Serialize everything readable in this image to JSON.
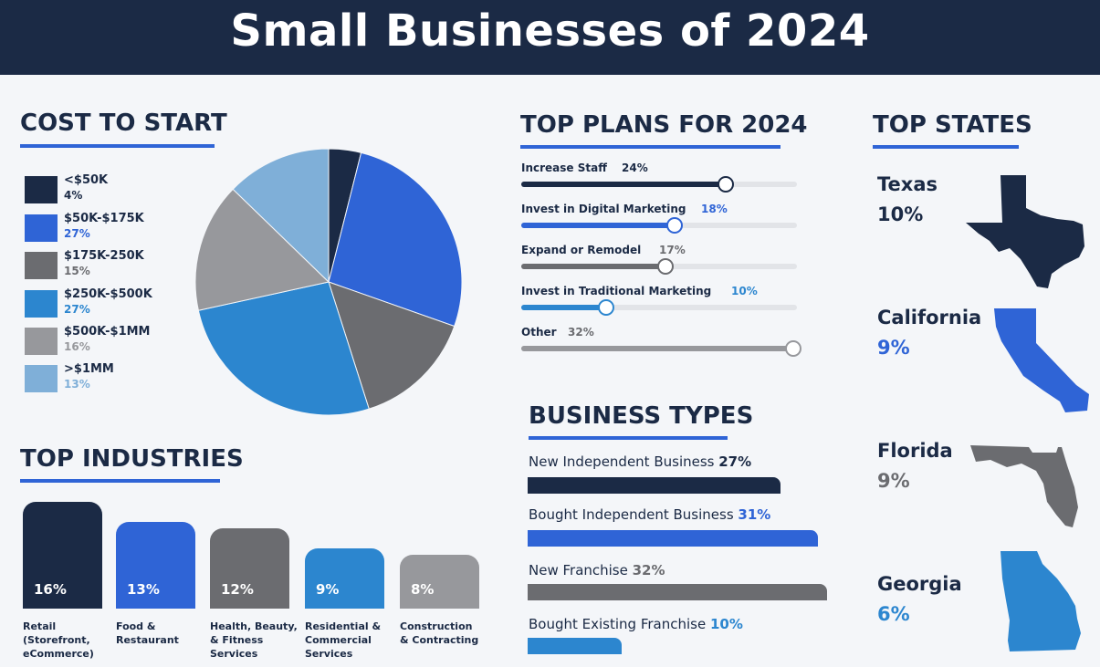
{
  "title": "Small Businesses of 2024",
  "colors": {
    "navy": "#1b2a45",
    "blue": "#2f64d6",
    "gray": "#6b6c70",
    "mid_blue": "#2c86cf",
    "light_gray": "#97989c",
    "light_blue": "#7fafd8"
  },
  "cost_to_start": {
    "heading": "COST TO START",
    "items": [
      {
        "label": "<$50K",
        "pct": "4%",
        "color": "#1b2a45"
      },
      {
        "label": "$50K-$175K",
        "pct": "27%",
        "color": "#2f64d6"
      },
      {
        "label": "$175K-250K",
        "pct": "15%",
        "color": "#6b6c70"
      },
      {
        "label": "$250K-$500K",
        "pct": "27%",
        "color": "#2c86cf"
      },
      {
        "label": "$500K-$1MM",
        "pct": "16%",
        "color": "#97989c"
      },
      {
        "label": ">$1MM",
        "pct": "13%",
        "color": "#7fafd8"
      }
    ]
  },
  "top_plans": {
    "heading": "TOP PLANS FOR 2024",
    "items": [
      {
        "label": "Increase Staff",
        "pct": "24%",
        "value": 24,
        "color": "#1b2a45"
      },
      {
        "label": "Invest in Digital Marketing",
        "pct": "18%",
        "value": 18,
        "color": "#2f64d6"
      },
      {
        "label": "Expand or Remodel",
        "pct": "17%",
        "value": 17,
        "color": "#6b6c70"
      },
      {
        "label": "Invest in Traditional Marketing",
        "pct": "10%",
        "value": 10,
        "color": "#2c86cf"
      },
      {
        "label": "Other",
        "pct": "32%",
        "value": 32,
        "color": "#97989c"
      }
    ]
  },
  "top_states": {
    "heading": "TOP STATES",
    "items": [
      {
        "name": "Texas",
        "pct": "10%",
        "color": "#1b2a45"
      },
      {
        "name": "California",
        "pct": "9%",
        "color": "#2f64d6"
      },
      {
        "name": "Florida",
        "pct": "9%",
        "color": "#6b6c70"
      },
      {
        "name": "Georgia",
        "pct": "6%",
        "color": "#2c86cf"
      }
    ]
  },
  "top_industries": {
    "heading": "TOP INDUSTRIES",
    "items": [
      {
        "label": "Retail\n(Storefront,\neCommerce)",
        "pct": "16%",
        "value": 16,
        "color": "#1b2a45"
      },
      {
        "label": "Food &\nRestaurant",
        "pct": "13%",
        "value": 13,
        "color": "#2f64d6"
      },
      {
        "label": "Health, Beauty,\n& Fitness\nServices",
        "pct": "12%",
        "value": 12,
        "color": "#6b6c70"
      },
      {
        "label": "Residential &\nCommercial\nServices",
        "pct": "9%",
        "value": 9,
        "color": "#2c86cf"
      },
      {
        "label": "Construction\n& Contracting",
        "pct": "8%",
        "value": 8,
        "color": "#97989c"
      }
    ]
  },
  "business_types": {
    "heading": "BUSINESS TYPES",
    "items": [
      {
        "label": "New Independent Business",
        "pct": "27%",
        "value": 27,
        "color": "#1b2a45"
      },
      {
        "label": "Bought Independent Business",
        "pct": "31%",
        "value": 31,
        "color": "#2f64d6"
      },
      {
        "label": "New Franchise",
        "pct": "32%",
        "value": 32,
        "color": "#6b6c70"
      },
      {
        "label": "Bought Existing Franchise",
        "pct": "10%",
        "value": 10,
        "color": "#2c86cf"
      }
    ]
  },
  "chart_data": [
    {
      "type": "pie",
      "title": "COST TO START",
      "categories": [
        "<$50K",
        "$50K-$175K",
        "$175K-250K",
        "$250K-$500K",
        "$500K-$1MM",
        ">$1MM"
      ],
      "values": [
        4,
        27,
        15,
        27,
        16,
        13
      ],
      "legend": "left"
    },
    {
      "type": "bar",
      "title": "TOP PLANS FOR 2024",
      "orientation": "horizontal",
      "categories": [
        "Increase Staff",
        "Invest in Digital Marketing",
        "Expand or Remodel",
        "Invest in Traditional Marketing",
        "Other"
      ],
      "values": [
        24,
        18,
        17,
        10,
        32
      ]
    },
    {
      "type": "bar",
      "title": "TOP INDUSTRIES",
      "categories": [
        "Retail (Storefront, eCommerce)",
        "Food & Restaurant",
        "Health, Beauty, & Fitness Services",
        "Residential & Commercial Services",
        "Construction & Contracting"
      ],
      "values": [
        16,
        13,
        12,
        9,
        8
      ]
    },
    {
      "type": "bar",
      "title": "BUSINESS TYPES",
      "orientation": "horizontal",
      "categories": [
        "New Independent Business",
        "Bought Independent Business",
        "New Franchise",
        "Bought Existing Franchise"
      ],
      "values": [
        27,
        31,
        32,
        10
      ]
    },
    {
      "type": "table",
      "title": "TOP STATES",
      "categories": [
        "Texas",
        "California",
        "Florida",
        "Georgia"
      ],
      "values": [
        10,
        9,
        9,
        6
      ]
    }
  ]
}
